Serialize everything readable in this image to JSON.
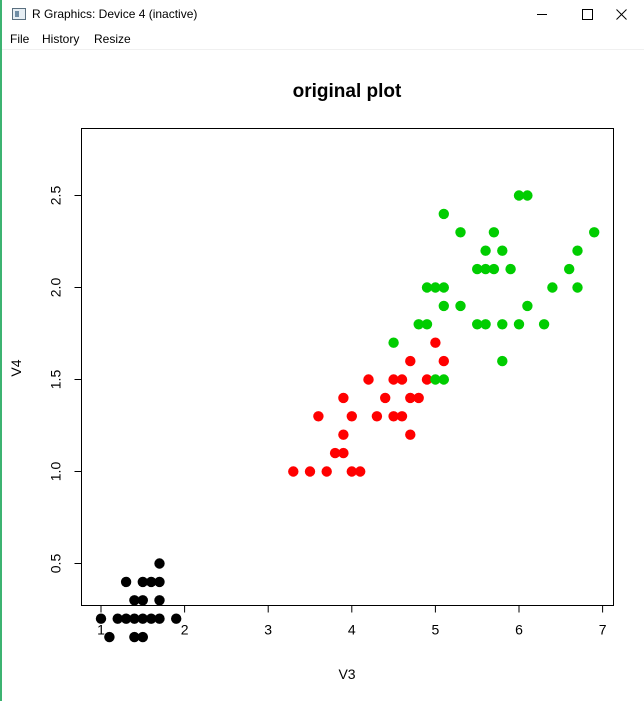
{
  "window": {
    "title": "R Graphics: Device 4 (inactive)"
  },
  "menu": {
    "file": "File",
    "history": "History",
    "resize": "Resize"
  },
  "colors": {
    "setosa": "#000000",
    "versicolor": "#ff0000",
    "virginica": "#00cd00",
    "accent_border": "#3cb371"
  },
  "chart_data": {
    "type": "scatter",
    "title": "original plot",
    "xlabel": "V3",
    "ylabel": "V4",
    "xlim": [
      0.8,
      7.1
    ],
    "ylim": [
      0.0,
      2.62
    ],
    "xticks": [
      "1",
      "2",
      "3",
      "4",
      "5",
      "6",
      "7"
    ],
    "yticks": [
      "0.5",
      "1.0",
      "1.5",
      "2.0",
      "2.5"
    ],
    "grid": false,
    "series": [
      {
        "color": "#000000",
        "points": [
          [
            1.0,
            0.2
          ],
          [
            1.1,
            0.1
          ],
          [
            1.2,
            0.2
          ],
          [
            1.3,
            0.2
          ],
          [
            1.3,
            0.4
          ],
          [
            1.4,
            0.1
          ],
          [
            1.4,
            0.2
          ],
          [
            1.4,
            0.3
          ],
          [
            1.5,
            0.1
          ],
          [
            1.5,
            0.2
          ],
          [
            1.5,
            0.3
          ],
          [
            1.5,
            0.4
          ],
          [
            1.6,
            0.2
          ],
          [
            1.6,
            0.4
          ],
          [
            1.7,
            0.2
          ],
          [
            1.7,
            0.3
          ],
          [
            1.7,
            0.4
          ],
          [
            1.7,
            0.5
          ],
          [
            1.9,
            0.2
          ]
        ]
      },
      {
        "color": "#ff0000",
        "points": [
          [
            3.3,
            1.0
          ],
          [
            3.5,
            1.0
          ],
          [
            3.6,
            1.3
          ],
          [
            3.7,
            1.0
          ],
          [
            3.8,
            1.1
          ],
          [
            3.9,
            1.1
          ],
          [
            3.9,
            1.2
          ],
          [
            3.9,
            1.4
          ],
          [
            4.0,
            1.0
          ],
          [
            4.0,
            1.3
          ],
          [
            4.1,
            1.0
          ],
          [
            4.2,
            1.5
          ],
          [
            4.3,
            1.3
          ],
          [
            4.4,
            1.4
          ],
          [
            4.5,
            1.3
          ],
          [
            4.5,
            1.5
          ],
          [
            4.6,
            1.3
          ],
          [
            4.6,
            1.5
          ],
          [
            4.7,
            1.2
          ],
          [
            4.7,
            1.4
          ],
          [
            4.7,
            1.6
          ],
          [
            4.8,
            1.4
          ],
          [
            4.9,
            1.5
          ],
          [
            5.0,
            1.7
          ],
          [
            5.1,
            1.6
          ]
        ]
      },
      {
        "color": "#00cd00",
        "points": [
          [
            4.5,
            1.7
          ],
          [
            4.8,
            1.8
          ],
          [
            4.9,
            1.8
          ],
          [
            4.9,
            2.0
          ],
          [
            5.0,
            1.5
          ],
          [
            5.0,
            2.0
          ],
          [
            5.1,
            1.5
          ],
          [
            5.1,
            1.9
          ],
          [
            5.1,
            2.0
          ],
          [
            5.1,
            2.4
          ],
          [
            5.3,
            1.9
          ],
          [
            5.3,
            2.3
          ],
          [
            5.5,
            1.8
          ],
          [
            5.5,
            2.1
          ],
          [
            5.6,
            1.8
          ],
          [
            5.6,
            2.1
          ],
          [
            5.6,
            2.2
          ],
          [
            5.7,
            2.1
          ],
          [
            5.7,
            2.3
          ],
          [
            5.8,
            1.6
          ],
          [
            5.8,
            1.8
          ],
          [
            5.8,
            2.2
          ],
          [
            5.9,
            2.1
          ],
          [
            6.0,
            1.8
          ],
          [
            6.0,
            2.5
          ],
          [
            6.1,
            1.9
          ],
          [
            6.1,
            2.5
          ],
          [
            6.3,
            1.8
          ],
          [
            6.4,
            2.0
          ],
          [
            6.6,
            2.1
          ],
          [
            6.7,
            2.0
          ],
          [
            6.7,
            2.2
          ],
          [
            6.9,
            2.3
          ]
        ]
      }
    ]
  }
}
